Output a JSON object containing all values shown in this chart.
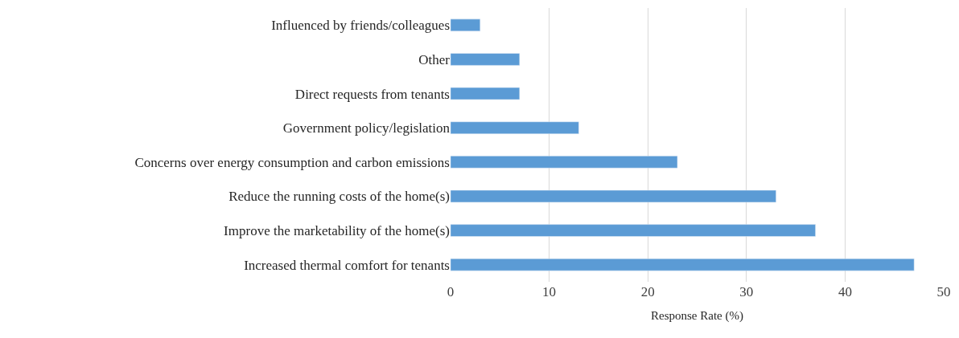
{
  "chart_data": {
    "type": "bar",
    "orientation": "horizontal",
    "xlabel": "Response Rate (%)",
    "categories": [
      "Influenced by friends/colleagues",
      "Other",
      "Direct requests from tenants",
      "Government policy/legislation",
      "Concerns over energy consumption and carbon emissions",
      "Reduce the running costs of the home(s)",
      "Improve the marketability of the home(s)",
      "Increased thermal comfort for tenants"
    ],
    "values": [
      3,
      7,
      7,
      13,
      23,
      33,
      37,
      47
    ],
    "color": "#5b9bd5",
    "xlim": [
      0,
      50
    ],
    "xticks": [
      0,
      10,
      20,
      30,
      40,
      50
    ],
    "grid": "x",
    "legend": false
  }
}
